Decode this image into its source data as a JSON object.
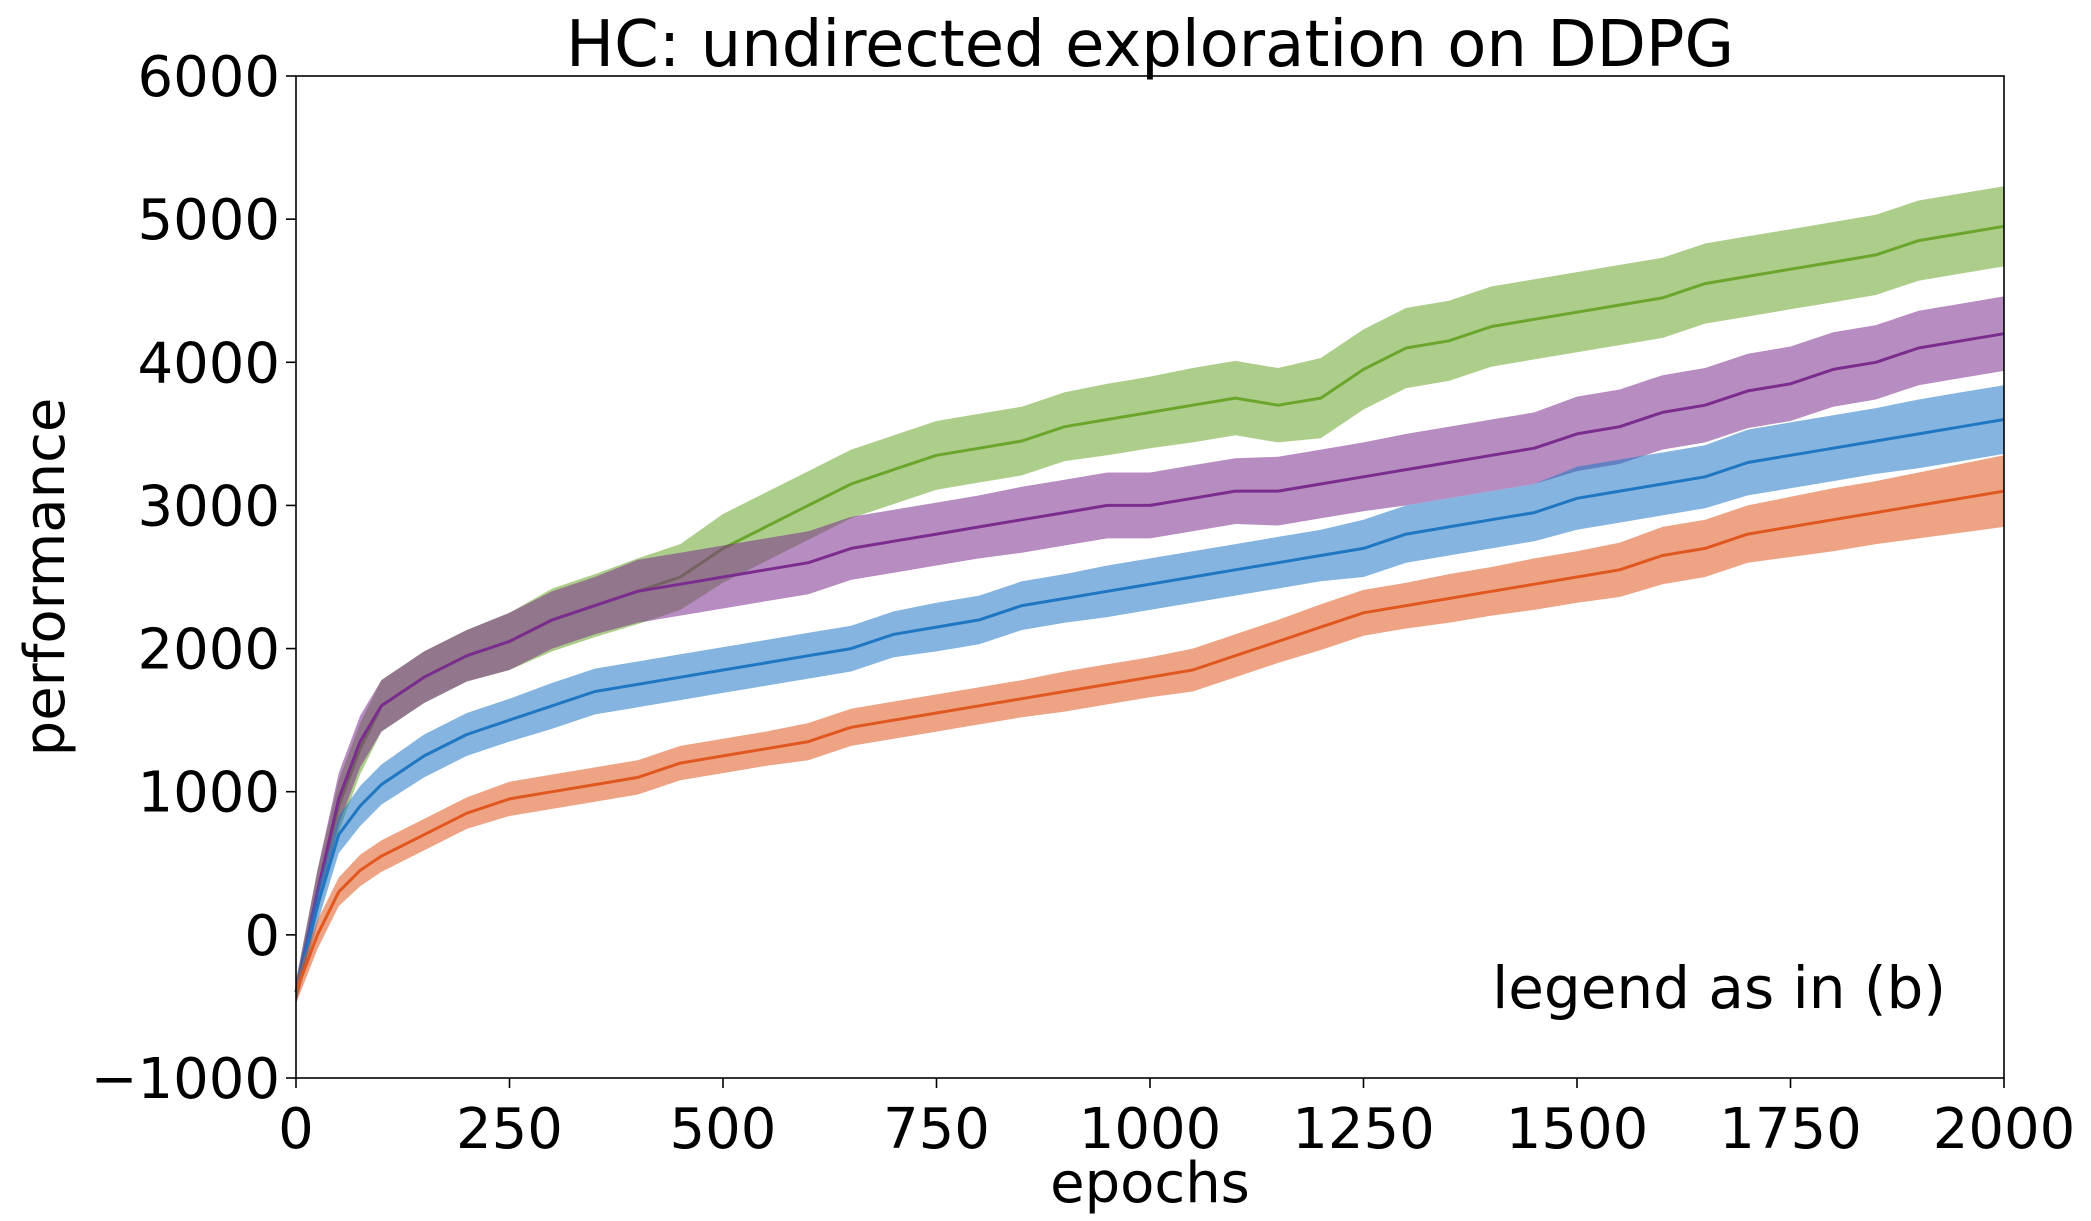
{
  "chart_data": {
    "type": "line",
    "title": "HC: undirected exploration on DDPG",
    "xlabel": "epochs",
    "ylabel": "performance",
    "xlim": [
      0,
      2000
    ],
    "ylim": [
      -1000,
      6000
    ],
    "xticks": [
      0,
      250,
      500,
      750,
      1000,
      1250,
      1500,
      1750,
      2000
    ],
    "yticks": [
      -1000,
      0,
      1000,
      2000,
      3000,
      4000,
      5000,
      6000
    ],
    "xtick_labels": [
      "0",
      "250",
      "500",
      "750",
      "1000",
      "1250",
      "1500",
      "1750",
      "2000"
    ],
    "ytick_labels": [
      "−1000",
      "0",
      "1000",
      "2000",
      "3000",
      "4000",
      "5000",
      "6000"
    ],
    "grid": false,
    "annotation": "legend as in (b)",
    "x": [
      0,
      25,
      50,
      75,
      100,
      150,
      200,
      250,
      300,
      350,
      400,
      450,
      500,
      550,
      600,
      650,
      700,
      750,
      800,
      850,
      900,
      950,
      1000,
      1050,
      1100,
      1150,
      1200,
      1250,
      1300,
      1350,
      1400,
      1450,
      1500,
      1550,
      1600,
      1650,
      1700,
      1750,
      1800,
      1850,
      1900,
      1950,
      2000
    ],
    "series": [
      {
        "color": "#6aa52c",
        "values": [
          -400,
          300,
          900,
          1300,
          1600,
          1800,
          1950,
          2050,
          2200,
          2300,
          2400,
          2500,
          2700,
          2850,
          3000,
          3150,
          3250,
          3350,
          3400,
          3450,
          3550,
          3600,
          3650,
          3700,
          3750,
          3700,
          3750,
          3950,
          4100,
          4150,
          4250,
          4300,
          4350,
          4400,
          4450,
          4550,
          4600,
          4650,
          4700,
          4750,
          4850,
          4900,
          4950
        ],
        "spread": [
          80,
          150,
          180,
          180,
          180,
          180,
          180,
          200,
          220,
          220,
          230,
          230,
          240,
          240,
          240,
          240,
          240,
          240,
          240,
          240,
          240,
          250,
          250,
          260,
          260,
          260,
          280,
          280,
          280,
          280,
          280,
          280,
          280,
          280,
          280,
          280,
          280,
          280,
          280,
          280,
          280,
          280,
          280
        ]
      },
      {
        "color": "#7b2d8e",
        "values": [
          -400,
          300,
          950,
          1350,
          1600,
          1800,
          1950,
          2050,
          2200,
          2300,
          2400,
          2450,
          2500,
          2550,
          2600,
          2700,
          2750,
          2800,
          2850,
          2900,
          2950,
          3000,
          3000,
          3050,
          3100,
          3100,
          3150,
          3200,
          3250,
          3300,
          3350,
          3400,
          3500,
          3550,
          3650,
          3700,
          3800,
          3850,
          3950,
          4000,
          4100,
          4150,
          4200
        ],
        "spread": [
          80,
          150,
          180,
          180,
          180,
          180,
          180,
          200,
          200,
          200,
          220,
          220,
          220,
          220,
          220,
          220,
          220,
          220,
          220,
          230,
          230,
          230,
          230,
          230,
          230,
          240,
          240,
          240,
          250,
          250,
          250,
          250,
          260,
          260,
          260,
          260,
          260,
          260,
          260,
          260,
          260,
          260,
          260
        ]
      },
      {
        "color": "#1f77c4",
        "values": [
          -400,
          200,
          700,
          900,
          1050,
          1250,
          1400,
          1500,
          1600,
          1700,
          1750,
          1800,
          1850,
          1900,
          1950,
          2000,
          2100,
          2150,
          2200,
          2300,
          2350,
          2400,
          2450,
          2500,
          2550,
          2600,
          2650,
          2700,
          2800,
          2850,
          2900,
          2950,
          3050,
          3100,
          3150,
          3200,
          3300,
          3350,
          3400,
          3450,
          3500,
          3550,
          3600
        ],
        "spread": [
          80,
          120,
          130,
          140,
          140,
          150,
          150,
          150,
          160,
          160,
          160,
          160,
          160,
          160,
          160,
          160,
          160,
          170,
          170,
          170,
          170,
          180,
          180,
          180,
          180,
          180,
          180,
          200,
          200,
          200,
          200,
          200,
          220,
          220,
          220,
          220,
          230,
          230,
          230,
          230,
          240,
          240,
          240
        ]
      },
      {
        "color": "#e0571f",
        "values": [
          -400,
          0,
          300,
          450,
          550,
          700,
          850,
          950,
          1000,
          1050,
          1100,
          1200,
          1250,
          1300,
          1350,
          1450,
          1500,
          1550,
          1600,
          1650,
          1700,
          1750,
          1800,
          1850,
          1950,
          2050,
          2150,
          2250,
          2300,
          2350,
          2400,
          2450,
          2500,
          2550,
          2650,
          2700,
          2800,
          2850,
          2900,
          2950,
          3000,
          3050,
          3100
        ],
        "spread": [
          80,
          100,
          100,
          110,
          110,
          110,
          110,
          120,
          120,
          120,
          120,
          120,
          120,
          120,
          130,
          130,
          130,
          130,
          130,
          130,
          140,
          140,
          140,
          150,
          150,
          150,
          160,
          160,
          160,
          170,
          170,
          180,
          180,
          190,
          200,
          200,
          200,
          210,
          220,
          220,
          230,
          240,
          250
        ]
      }
    ]
  }
}
